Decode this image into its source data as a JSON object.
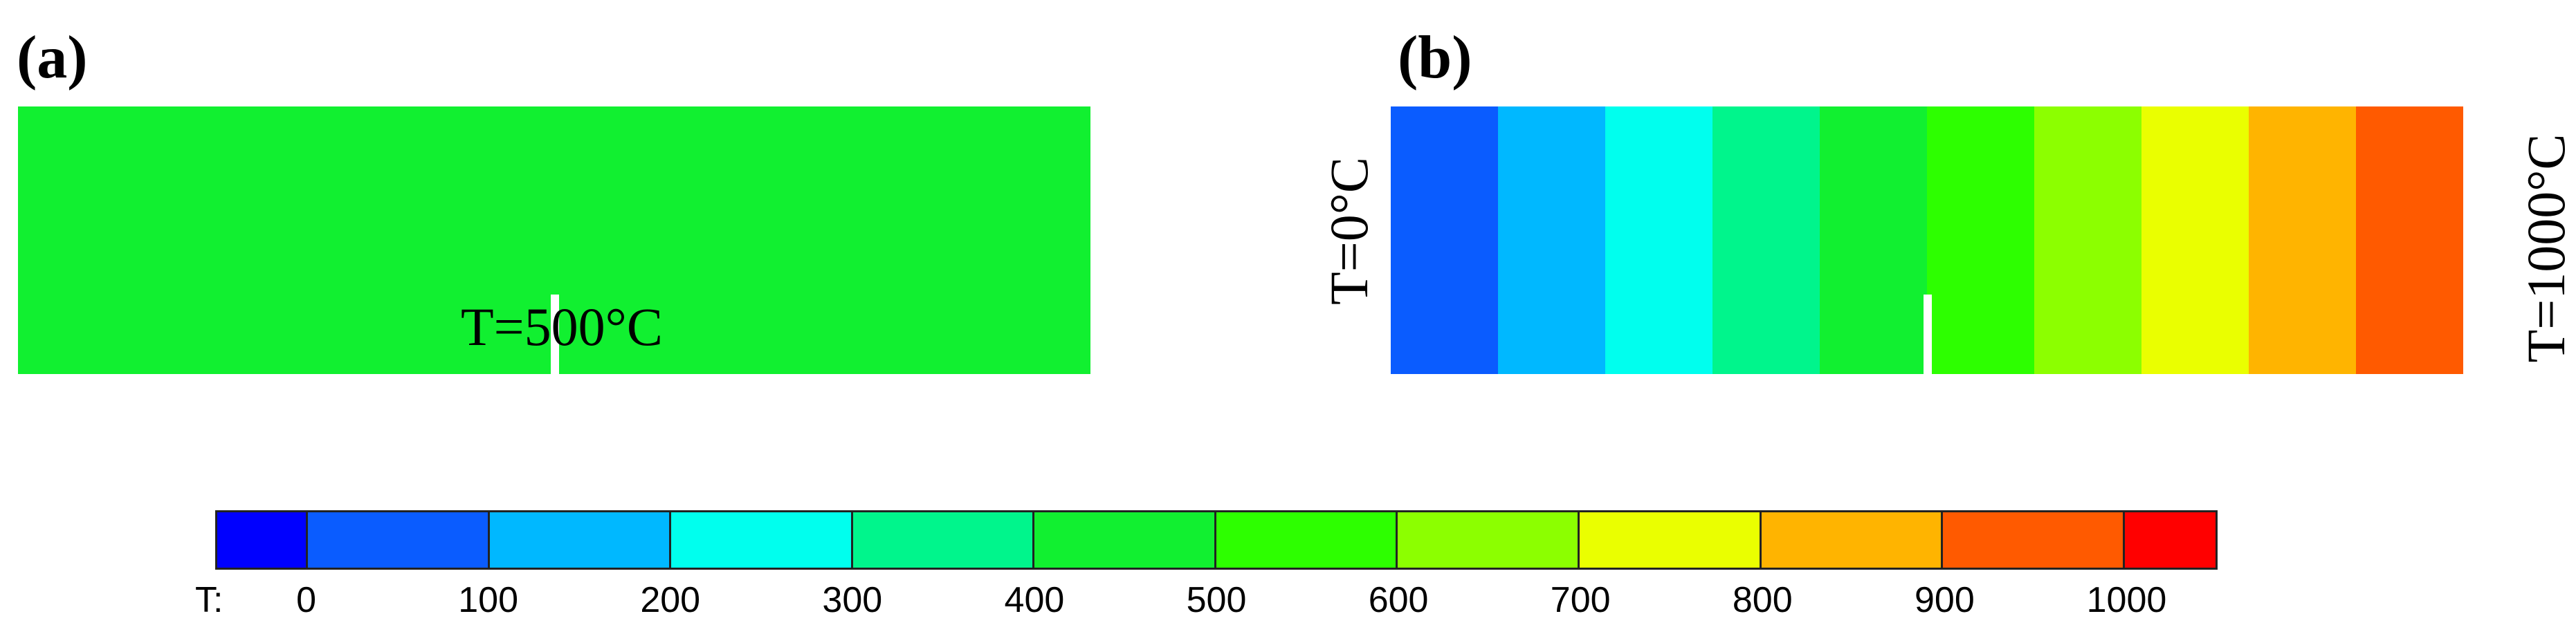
{
  "panels": {
    "a": {
      "label": "(a)",
      "annotation": "T=500°C",
      "fill_color": "#11f030"
    },
    "b": {
      "label": "(b)",
      "left_annotation": "T=0°C",
      "right_annotation": "T=1000°C",
      "band_colors": [
        "#0a5cff",
        "#00b8ff",
        "#00ffee",
        "#00f58c",
        "#11f030",
        "#2dff00",
        "#8cff00",
        "#eaff00",
        "#ffb400",
        "#ff5a00"
      ]
    }
  },
  "colorbar": {
    "variable_label": "T:",
    "ticks": [
      "0",
      "100",
      "200",
      "300",
      "400",
      "500",
      "600",
      "700",
      "800",
      "900",
      "1000"
    ],
    "segment_colors": [
      "#0000ff",
      "#0a5cff",
      "#00b8ff",
      "#00ffee",
      "#00f58c",
      "#11f030",
      "#2dff00",
      "#8cff00",
      "#eaff00",
      "#ffb400",
      "#ff5a00",
      "#ff0000"
    ],
    "range": [
      -50,
      1050
    ],
    "tick_values": [
      0,
      100,
      200,
      300,
      400,
      500,
      600,
      700,
      800,
      900,
      1000
    ]
  }
}
